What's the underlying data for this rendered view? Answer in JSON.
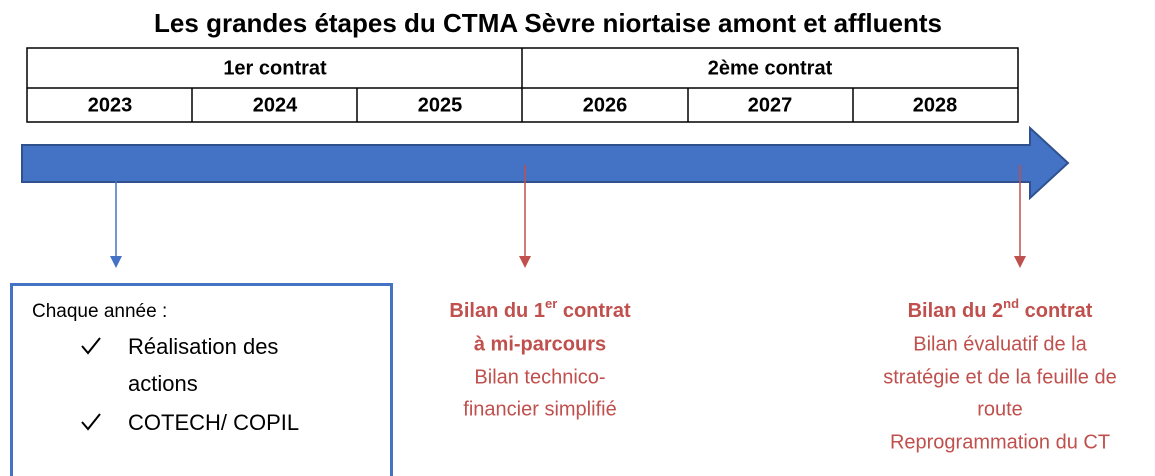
{
  "title": "Les grandes étapes du CTMA Sèvre niortaise amont et affluents",
  "table": {
    "contracts": [
      "1er contrat",
      "2ème contrat"
    ],
    "years": [
      "2023",
      "2024",
      "2025",
      "2026",
      "2027",
      "2028"
    ]
  },
  "yearly_box": {
    "heading": "Chaque année :",
    "items": [
      [
        "Réalisation des",
        "actions"
      ],
      [
        "COTECH/ COPIL"
      ]
    ]
  },
  "mid_review": {
    "title": {
      "before": "Bilan du 1",
      "sup": "er",
      "after": " contrat"
    },
    "bold_lines": [
      "à mi-parcours"
    ],
    "lines": [
      "Bilan technico-",
      "financier simplifié"
    ]
  },
  "final_review": {
    "title": {
      "before": "Bilan du 2",
      "sup": "nd",
      "after": " contrat"
    },
    "lines": [
      "Bilan évaluatif de la",
      "stratégie et de la feuille de",
      "route",
      "Reprogrammation du CT"
    ]
  }
}
